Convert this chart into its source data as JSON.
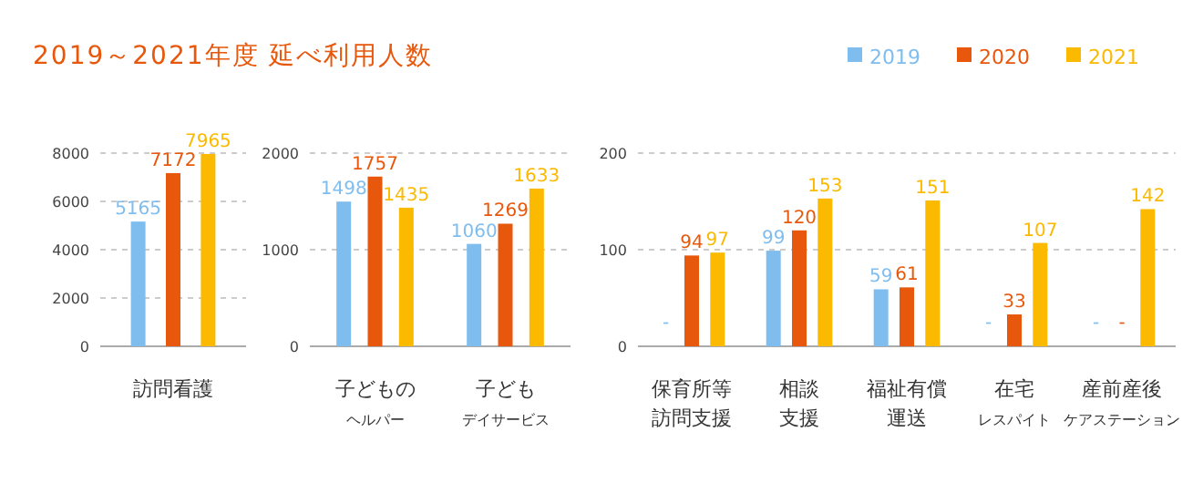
{
  "chart_data": [
    {
      "type": "bar",
      "title": "2019～2021年度 延べ利用人数",
      "legend": "top right",
      "grid": "y",
      "data_labels": true,
      "categories": [
        "訪問看護"
      ],
      "ylim": [
        0,
        8000
      ],
      "yticks": [
        0,
        2000,
        4000,
        6000,
        8000
      ],
      "series": [
        {
          "name": "2019",
          "color": "#7fbdef",
          "values": [
            5165
          ]
        },
        {
          "name": "2020",
          "color": "#e8580c",
          "values": [
            7172
          ]
        },
        {
          "name": "2021",
          "color": "#fbb900",
          "values": [
            7965
          ]
        }
      ]
    },
    {
      "type": "bar",
      "grid": "y",
      "data_labels": true,
      "categories": [
        "子どもの$_{ヘルパー}$",
        "子ども$_{デイサービス}$"
      ],
      "ylim": [
        0,
        2000
      ],
      "yticks": [
        0,
        1000,
        2000
      ],
      "series": [
        {
          "color": "#7fbdef",
          "values": [
            1498,
            1060
          ]
        },
        {
          "color": "#e8580c",
          "values": [
            1757,
            1269
          ]
        },
        {
          "color": "#fbb900",
          "values": [
            1435,
            1633
          ]
        }
      ]
    },
    {
      "type": "bar",
      "grid": "y",
      "categories": [
        "保育所等訪問支援",
        "相談支援",
        "福祉有償運送",
        "在宅$_{レスパイト}$",
        "産前産後$_{ケアステーション}$"
      ],
      "ylim": [
        0,
        200
      ],
      "yticks": [
        0,
        100,
        200
      ],
      "series": [
        {
          "color": "#7fbdef",
          "values": [
            null,
            99,
            59,
            null,
            null
          ],
          "value_labels": [
            "-",
            "99",
            "59",
            "-",
            "-"
          ]
        },
        {
          "color": "#e8580c",
          "values": [
            94,
            120,
            61,
            33,
            null
          ],
          "value_labels": [
            "94",
            "120",
            "61",
            "33",
            "-"
          ]
        },
        {
          "color": "#fbb900",
          "values": [
            97,
            153,
            151,
            107,
            142
          ],
          "value_labels": [
            "97",
            "153",
            "151",
            "107",
            "142"
          ]
        }
      ]
    }
  ]
}
